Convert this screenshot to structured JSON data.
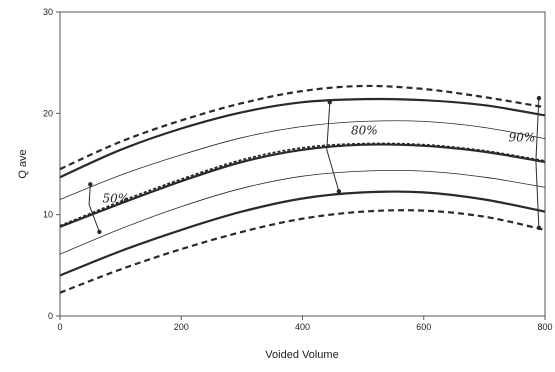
{
  "chart_data": {
    "type": "line",
    "xlabel": "Voided Volume",
    "ylabel": "Q ave",
    "xlim": [
      0,
      800
    ],
    "ylim": [
      0,
      30
    ],
    "xticks": [
      "0",
      "200",
      "400",
      "600",
      "800"
    ],
    "yticks": [
      "0",
      "10",
      "20",
      "30"
    ],
    "grid": false,
    "colors": {
      "series": "#2a2a2a",
      "frame": "#555555"
    },
    "series": [
      {
        "style": "dashed-outer",
        "x": [
          0,
          100,
          200,
          300,
          400,
          500,
          600,
          700,
          800
        ],
        "y": [
          14.5,
          17.2,
          19.3,
          21.0,
          22.2,
          22.7,
          22.4,
          21.6,
          20.6
        ]
      },
      {
        "style": "solid-bold",
        "x": [
          0,
          100,
          200,
          300,
          400,
          500,
          600,
          700,
          800
        ],
        "y": [
          13.7,
          16.4,
          18.5,
          20.1,
          21.1,
          21.4,
          21.3,
          20.8,
          19.8
        ]
      },
      {
        "style": "thin",
        "x": [
          0,
          100,
          200,
          300,
          400,
          500,
          600,
          700,
          800
        ],
        "y": [
          11.5,
          13.9,
          15.9,
          17.6,
          18.7,
          19.2,
          19.2,
          18.6,
          17.5
        ]
      },
      {
        "style": "solid-bold",
        "x": [
          0,
          100,
          200,
          300,
          400,
          500,
          600,
          700,
          800
        ],
        "y": [
          8.8,
          11.1,
          13.3,
          15.2,
          16.4,
          16.9,
          16.8,
          16.2,
          15.2
        ]
      },
      {
        "style": "dashed-mid",
        "x": [
          0,
          100,
          200,
          300,
          400,
          500,
          600,
          700,
          800
        ],
        "y": [
          8.9,
          11.3,
          13.5,
          15.4,
          16.6,
          17.0,
          16.9,
          16.3,
          15.3
        ]
      },
      {
        "style": "thin",
        "x": [
          0,
          100,
          200,
          300,
          400,
          500,
          600,
          700,
          800
        ],
        "y": [
          6.1,
          8.6,
          10.8,
          12.6,
          13.8,
          14.3,
          14.3,
          13.7,
          12.7
        ]
      },
      {
        "style": "solid-bold",
        "x": [
          0,
          100,
          200,
          300,
          400,
          500,
          600,
          700,
          800
        ],
        "y": [
          4.0,
          6.4,
          8.5,
          10.3,
          11.6,
          12.2,
          12.2,
          11.5,
          10.3
        ]
      },
      {
        "style": "dashed-outer",
        "x": [
          0,
          100,
          200,
          300,
          400,
          500,
          600,
          700,
          800
        ],
        "y": [
          2.3,
          4.6,
          6.6,
          8.3,
          9.6,
          10.3,
          10.4,
          9.8,
          8.5
        ]
      }
    ],
    "annotations": [
      {
        "text": "50%",
        "x": 70,
        "y": 11.2
      },
      {
        "text": "80%",
        "x": 480,
        "y": 17.9
      },
      {
        "text": "90%",
        "x": 740,
        "y": 17.2
      }
    ],
    "brackets": [
      {
        "x": [
          50,
          48,
          65
        ],
        "y": [
          13.0,
          11.0,
          8.3
        ]
      },
      {
        "x": [
          445,
          440,
          460
        ],
        "y": [
          21.1,
          16.4,
          12.3
        ]
      },
      {
        "x": [
          790,
          785,
          790
        ],
        "y": [
          21.5,
          15.3,
          8.7
        ]
      }
    ]
  }
}
